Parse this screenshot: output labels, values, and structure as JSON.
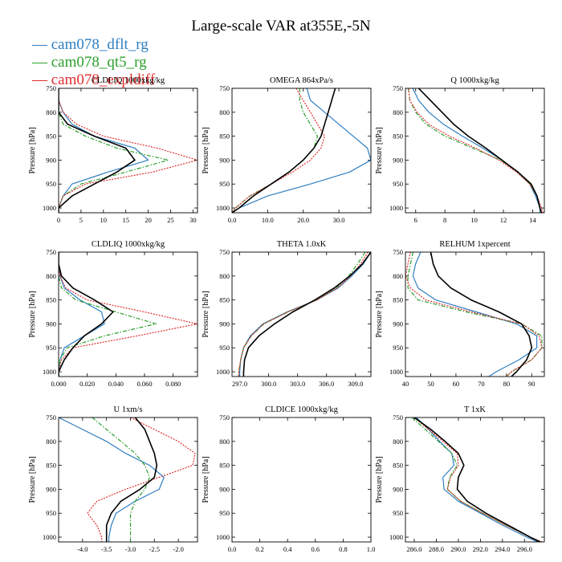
{
  "title": "Large-scale VAR at355E,-5N",
  "legend": [
    {
      "label": "cam078_dflt_rg",
      "color": "#2f7fc1"
    },
    {
      "label": "cam078_qt5_rg",
      "color": "#2ca02c"
    },
    {
      "label": "cam078_expldiff",
      "color": "#e03030"
    }
  ],
  "colors": {
    "dflt": "#2f7fc1",
    "qt5": "#2ca02c",
    "expldiff": "#e03030",
    "ref": "#000000"
  },
  "chart_data": [
    {
      "type": "line",
      "title": "CLDLIQ 1000xkg/kg",
      "ylabel": "Pressure [hPa]",
      "ylim": [
        1010,
        750
      ],
      "y_ticks": [
        750,
        800,
        850,
        900,
        950,
        1000
      ],
      "xlim": [
        0,
        31
      ],
      "x_ticks": [
        0,
        5,
        10,
        15,
        20,
        25,
        30
      ],
      "x_tick_labels": [
        "0",
        "5",
        "10",
        "15",
        "20",
        "25",
        "30"
      ],
      "pressure": [
        750,
        775,
        800,
        825,
        850,
        875,
        900,
        925,
        950,
        975,
        1000,
        1010
      ],
      "series": [
        {
          "key": "dflt",
          "x": [
            0,
            0,
            1,
            3,
            8,
            17,
            20,
            11,
            3,
            1,
            0,
            0
          ]
        },
        {
          "key": "qt5",
          "x": [
            0,
            0,
            0,
            1,
            6,
            13,
            24.5,
            15,
            5,
            1,
            0,
            0
          ]
        },
        {
          "key": "expldiff",
          "x": [
            0,
            0,
            1,
            4,
            10,
            22,
            31,
            21,
            6,
            1,
            0,
            0
          ]
        },
        {
          "key": "ref",
          "x": [
            0,
            0,
            0,
            2,
            8,
            15,
            17,
            13,
            8,
            3,
            0,
            0
          ]
        }
      ]
    },
    {
      "type": "line",
      "title": "OMEGA 864xPa/s",
      "ylabel": "Pressure [hPa]",
      "ylim": [
        1010,
        750
      ],
      "y_ticks": [
        750,
        800,
        850,
        900,
        950,
        1000
      ],
      "xlim": [
        0,
        39
      ],
      "x_ticks": [
        0,
        10,
        20,
        30
      ],
      "x_tick_labels": [
        "0.0",
        "10.0",
        "20.0",
        "30.0"
      ],
      "pressure": [
        750,
        775,
        800,
        825,
        850,
        875,
        900,
        925,
        950,
        975,
        1000,
        1010
      ],
      "series": [
        {
          "key": "dflt",
          "x": [
            21,
            22,
            26,
            30,
            34,
            38,
            39,
            33,
            22,
            10,
            2,
            0
          ]
        },
        {
          "key": "qt5",
          "x": [
            19,
            19,
            20,
            22,
            24,
            23,
            20,
            16,
            11,
            5,
            1,
            0
          ]
        },
        {
          "key": "expldiff",
          "x": [
            18,
            20,
            22,
            24,
            26,
            25,
            22,
            17,
            11,
            5,
            1,
            0
          ]
        },
        {
          "key": "ref",
          "x": [
            29,
            28,
            27,
            26,
            25,
            23,
            20,
            16,
            11,
            6,
            2,
            0
          ]
        }
      ]
    },
    {
      "type": "line",
      "title": "Q 1000xkg/kg",
      "ylabel": "Pressure [hPa]",
      "ylim": [
        1010,
        750
      ],
      "y_ticks": [
        750,
        800,
        850,
        900,
        950,
        1000
      ],
      "xlim": [
        5.3,
        14.8
      ],
      "x_ticks": [
        6,
        8,
        10,
        12,
        14
      ],
      "x_tick_labels": [
        "6",
        "8",
        "10",
        "12",
        "14"
      ],
      "pressure": [
        750,
        775,
        800,
        825,
        850,
        875,
        900,
        925,
        950,
        975,
        1000,
        1010
      ],
      "series": [
        {
          "key": "dflt",
          "x": [
            5.8,
            6.2,
            6.9,
            7.9,
            9.2,
            10.6,
            11.9,
            13.0,
            13.8,
            14.2,
            14.5,
            14.5
          ]
        },
        {
          "key": "qt5",
          "x": [
            5.5,
            5.6,
            6.0,
            6.7,
            8.0,
            9.9,
            11.8,
            13.0,
            13.8,
            14.3,
            14.5,
            14.6
          ]
        },
        {
          "key": "expldiff",
          "x": [
            5.5,
            5.6,
            6.1,
            6.9,
            8.3,
            10.1,
            11.7,
            12.9,
            13.8,
            14.3,
            14.6,
            14.7
          ]
        },
        {
          "key": "ref",
          "x": [
            6.2,
            7.0,
            7.8,
            8.6,
            9.6,
            10.8,
            11.9,
            13.0,
            13.9,
            14.3,
            14.5,
            14.6
          ]
        }
      ]
    },
    {
      "type": "line",
      "title": "CLDLIQ 1000xkg/kg",
      "ylabel": "Pressure [hPa]",
      "ylim": [
        1010,
        750
      ],
      "y_ticks": [
        750,
        800,
        850,
        900,
        950,
        1000
      ],
      "xlim": [
        0,
        0.097
      ],
      "x_ticks": [
        0,
        0.02,
        0.04,
        0.06,
        0.08
      ],
      "x_tick_labels": [
        "0.000",
        "0.020",
        "0.040",
        "0.060",
        "0.080"
      ],
      "pressure": [
        750,
        775,
        800,
        825,
        850,
        875,
        900,
        925,
        950,
        975,
        1000,
        1010
      ],
      "series": [
        {
          "key": "dflt",
          "x": [
            0,
            0,
            0.001,
            0.004,
            0.015,
            0.03,
            0.032,
            0.018,
            0.004,
            0.001,
            0,
            0
          ]
        },
        {
          "key": "qt5",
          "x": [
            0,
            0,
            0,
            0.002,
            0.012,
            0.04,
            0.068,
            0.032,
            0.006,
            0.001,
            0,
            0
          ]
        },
        {
          "key": "expldiff",
          "x": [
            0,
            0,
            0.001,
            0.005,
            0.02,
            0.06,
            0.097,
            0.055,
            0.01,
            0.002,
            0,
            0
          ]
        },
        {
          "key": "ref",
          "x": [
            0,
            0,
            0.002,
            0.01,
            0.025,
            0.038,
            0.03,
            0.018,
            0.01,
            0.004,
            0,
            0
          ]
        }
      ]
    },
    {
      "type": "line",
      "title": "THETA 1.0xK",
      "ylabel": "Pressure [hPa]",
      "ylim": [
        1010,
        750
      ],
      "y_ticks": [
        750,
        800,
        850,
        900,
        950,
        1000
      ],
      "xlim": [
        296.2,
        310.6
      ],
      "x_ticks": [
        297,
        300,
        303,
        306,
        309
      ],
      "x_tick_labels": [
        "297.0",
        "300.0",
        "303.0",
        "306.0",
        "309.0"
      ],
      "pressure": [
        750,
        775,
        800,
        825,
        850,
        875,
        900,
        925,
        950,
        975,
        1000,
        1010
      ],
      "series": [
        {
          "key": "dflt",
          "x": [
            310.6,
            309.8,
            308.6,
            307.2,
            305.0,
            301.9,
            299.4,
            298.1,
            297.4,
            297.1,
            297.0,
            297.0
          ]
        },
        {
          "key": "qt5",
          "x": [
            310.0,
            309.2,
            308.3,
            307.0,
            305.0,
            302.0,
            299.5,
            298.2,
            297.4,
            297.1,
            296.9,
            296.9
          ]
        },
        {
          "key": "expldiff",
          "x": [
            310.3,
            309.5,
            308.5,
            307.1,
            305.0,
            302.0,
            299.5,
            298.2,
            297.4,
            297.1,
            296.9,
            296.9
          ]
        },
        {
          "key": "ref",
          "x": [
            310.6,
            309.7,
            308.4,
            306.8,
            304.8,
            302.5,
            300.6,
            299.0,
            297.9,
            297.5,
            297.4,
            297.4
          ]
        }
      ]
    },
    {
      "type": "line",
      "title": "RELHUM 1xpercent",
      "ylabel": "Pressure [hPa]",
      "ylim": [
        1010,
        750
      ],
      "y_ticks": [
        750,
        800,
        850,
        900,
        950,
        1000
      ],
      "xlim": [
        40,
        95
      ],
      "x_ticks": [
        40,
        50,
        60,
        70,
        80,
        90
      ],
      "x_tick_labels": [
        "40",
        "50",
        "60",
        "70",
        "80",
        "90"
      ],
      "pressure": [
        750,
        775,
        800,
        825,
        850,
        875,
        900,
        925,
        950,
        975,
        1000,
        1010
      ],
      "series": [
        {
          "key": "dflt",
          "x": [
            46,
            44,
            43,
            45,
            52,
            68,
            84,
            92,
            92,
            85,
            76,
            73
          ]
        },
        {
          "key": "qt5",
          "x": [
            43,
            42,
            41,
            41,
            45,
            64,
            86,
            94,
            94,
            90,
            82,
            80
          ]
        },
        {
          "key": "expldiff",
          "x": [
            42,
            41,
            40,
            42,
            48,
            66,
            86,
            93,
            94,
            90,
            82,
            80
          ]
        },
        {
          "key": "ref",
          "x": [
            50,
            51,
            53,
            58,
            66,
            77,
            86,
            89,
            90,
            88,
            84,
            82
          ]
        }
      ]
    },
    {
      "type": "line",
      "title": "U 1xm/s",
      "ylabel": "Pressure [hPa]",
      "ylim": [
        1010,
        750
      ],
      "y_ticks": [
        750,
        800,
        850,
        900,
        950,
        1000
      ],
      "xlim": [
        -4.5,
        -1.6
      ],
      "x_ticks": [
        -4.0,
        -3.5,
        -3.0,
        -2.5,
        -2.0
      ],
      "x_tick_labels": [
        "-4.0",
        "-3.5",
        "-3.0",
        "-2.5",
        "-2.0"
      ],
      "pressure": [
        750,
        775,
        800,
        825,
        850,
        875,
        900,
        925,
        950,
        975,
        1000,
        1010
      ],
      "series": [
        {
          "key": "dflt",
          "x": [
            -4.5,
            -4.0,
            -3.5,
            -3.1,
            -2.6,
            -2.3,
            -2.4,
            -2.9,
            -3.3,
            -3.4,
            -3.45,
            -3.45
          ]
        },
        {
          "key": "qt5",
          "x": [
            -3.8,
            -3.5,
            -3.2,
            -2.9,
            -2.7,
            -2.6,
            -2.7,
            -2.9,
            -3.0,
            -3.0,
            -3.0,
            -3.0
          ]
        },
        {
          "key": "expldiff",
          "x": [
            -3.0,
            -2.5,
            -2.0,
            -1.65,
            -1.7,
            -2.4,
            -3.1,
            -3.7,
            -3.9,
            -3.7,
            -3.6,
            -3.6
          ]
        },
        {
          "key": "ref",
          "x": [
            -2.9,
            -2.7,
            -2.6,
            -2.5,
            -2.45,
            -2.5,
            -2.8,
            -3.2,
            -3.4,
            -3.5,
            -3.5,
            -3.5
          ]
        }
      ]
    },
    {
      "type": "line",
      "title": "CLDICE 1000xkg/kg",
      "ylabel": "Pressure [hPa]",
      "ylim": [
        1010,
        750
      ],
      "y_ticks": [
        750,
        800,
        850,
        900,
        950,
        1000
      ],
      "xlim": [
        0,
        1
      ],
      "x_ticks": [
        0,
        0.2,
        0.4,
        0.6,
        0.8,
        1.0
      ],
      "x_tick_labels": [
        "0.0",
        "0.2",
        "0.4",
        "0.6",
        "0.8",
        "1.0"
      ],
      "pressure": [],
      "series": []
    },
    {
      "type": "line",
      "title": "T 1xK",
      "ylabel": "Pressure [hPa]",
      "ylim": [
        1010,
        750
      ],
      "y_ticks": [
        750,
        800,
        850,
        900,
        950,
        1000
      ],
      "xlim": [
        285.2,
        297.8
      ],
      "x_ticks": [
        286,
        288,
        290,
        292,
        294,
        296
      ],
      "x_tick_labels": [
        "286.0",
        "288.0",
        "290.0",
        "292.0",
        "294.0",
        "296.0"
      ],
      "pressure": [
        750,
        775,
        800,
        825,
        850,
        875,
        900,
        925,
        950,
        975,
        1000,
        1010
      ],
      "series": [
        {
          "key": "dflt",
          "x": [
            286.2,
            287.3,
            288.3,
            289.4,
            289.6,
            288.6,
            288.7,
            290.0,
            292.0,
            294.0,
            296.2,
            297.2
          ]
        },
        {
          "key": "qt5",
          "x": [
            285.8,
            287.0,
            288.2,
            289.4,
            289.9,
            289.2,
            289.0,
            290.2,
            292.2,
            294.3,
            296.5,
            297.5
          ]
        },
        {
          "key": "expldiff",
          "x": [
            286.0,
            287.3,
            288.6,
            289.9,
            290.0,
            289.3,
            289.0,
            290.2,
            292.2,
            294.3,
            296.5,
            297.6
          ]
        },
        {
          "key": "ref",
          "x": [
            286.0,
            287.5,
            288.8,
            290.0,
            290.5,
            290.0,
            289.9,
            290.8,
            292.5,
            294.5,
            296.5,
            297.4
          ]
        }
      ]
    }
  ]
}
